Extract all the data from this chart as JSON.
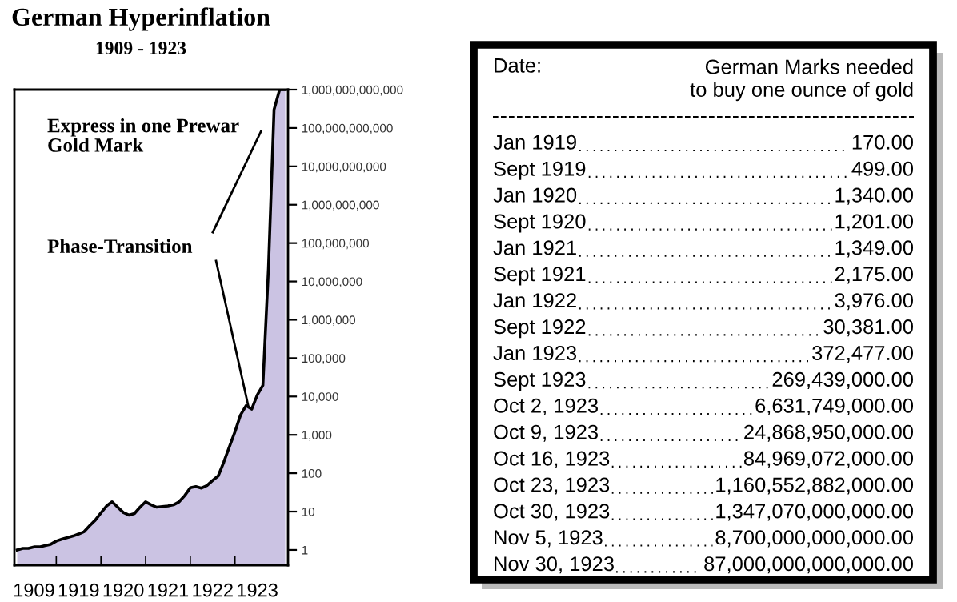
{
  "chart_data": [
    {
      "type": "area",
      "title": "German Hyperinflation",
      "subtitle": "1909 - 1923",
      "categories": [
        null,
        null,
        null,
        "1909",
        null,
        null,
        null,
        null,
        null,
        null,
        null,
        "1919",
        null,
        null,
        null,
        null,
        null,
        null,
        null,
        "1920",
        null,
        null,
        null,
        null,
        null,
        null,
        null,
        "1921",
        null,
        null,
        null,
        null,
        null,
        null,
        null,
        "1922",
        null,
        null,
        null,
        null,
        null,
        null,
        null,
        "1923",
        null,
        null,
        null,
        null,
        null
      ],
      "series": [
        {
          "color": "#cbc3e3",
          "values": [
            1.0,
            1.1,
            1.1,
            1.2,
            1.2,
            1.3,
            1.4,
            1.7,
            1.9,
            2.1,
            2.3,
            2.6,
            3.0,
            4.3,
            6.0,
            9.3,
            14,
            18,
            13,
            9.5,
            8.1,
            8.9,
            13,
            18,
            15,
            13,
            13.5,
            14,
            15,
            18,
            26,
            42,
            45,
            41,
            48,
            65,
            85,
            195,
            490,
            1200,
            3300,
            5800,
            4700,
            11000,
            19500,
            22000000,
            300000000000,
            1000000000000,
            1000000000000
          ]
        }
      ],
      "log": "y",
      "ylim": [
        0.4,
        1000000000000
      ],
      "yticks": [
        1,
        10,
        100,
        {
          "value": 1000,
          "label": "1,000"
        },
        {
          "value": 10000,
          "label": "10,000"
        },
        {
          "value": 100000,
          "label": "100,000"
        },
        {
          "value": 1000000,
          "label": "1,000,000"
        },
        {
          "value": 10000000,
          "label": "10,000,000"
        },
        {
          "value": 100000000,
          "label": "100,000,000"
        },
        {
          "value": 1000000000,
          "label": "1,000,000,000"
        },
        {
          "value": 10000000000,
          "label": "10,000,000,000"
        },
        {
          "value": 100000000000,
          "label": "100,000,000,000"
        },
        {
          "value": 1000000000000,
          "label": "1,000,000,000,000"
        }
      ],
      "grid": false,
      "annotations": [
        "Express in one Prewar\nGold Mark",
        "Phase-Transition"
      ]
    },
    {
      "type": "other",
      "annotations": [
        "Date:",
        "German Marks needed\nto buy one ounce of gold",
        "Jan 1919",
        "170.00",
        "Sept 1919",
        "499.00",
        "Jan 1920",
        "1,340.00",
        "Sept 1920",
        "1,201.00",
        "Jan 1921",
        "1,349.00",
        "Sept 1921",
        "2,175.00",
        "Jan 1922",
        "3,976.00",
        "Sept 1922",
        "30,381.00",
        "Jan 1923",
        "372,477.00",
        "Sept 1923",
        "269,439,000.00",
        "Oct 2, 1923",
        "6,631,749,000.00",
        "Oct 9, 1923",
        "24,868,950,000.00",
        "Oct 16, 1923",
        "84,969,072,000.00",
        "Oct 23, 1923",
        "1,160,552,882,000.00",
        "Oct 30, 1923",
        "1,347,070,000,000.00",
        "Nov 5, 1923",
        "8,700,000,000,000.00",
        "Nov 30, 1923",
        "87,000,000,000,000.00"
      ]
    }
  ]
}
